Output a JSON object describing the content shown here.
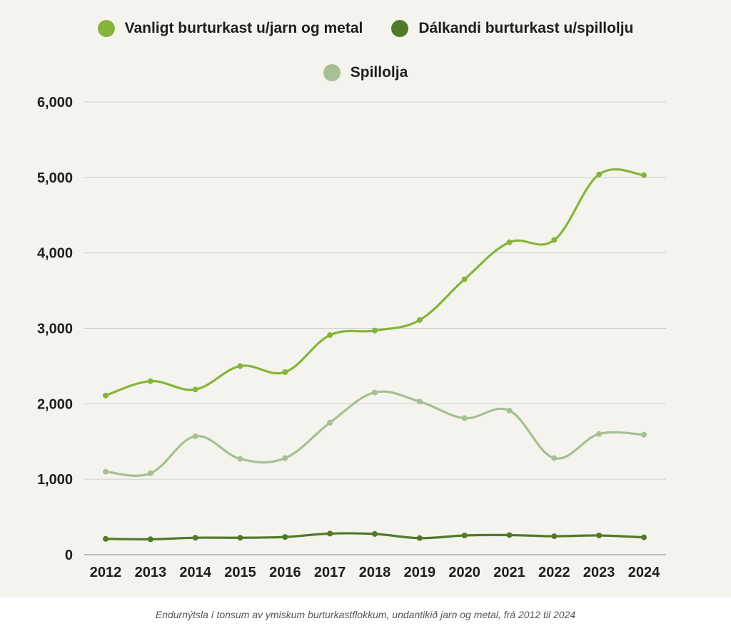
{
  "chart_data": {
    "type": "line",
    "title": "",
    "xlabel": "",
    "ylabel": "",
    "ylim": [
      0,
      6000
    ],
    "yticks": [
      0,
      1000,
      2000,
      3000,
      4000,
      5000,
      6000
    ],
    "ytick_labels": [
      "0",
      "1,000",
      "2,000",
      "3,000",
      "4,000",
      "5,000",
      "6,000"
    ],
    "grid": true,
    "legend_position": "top-center",
    "categories": [
      "2012",
      "2013",
      "2014",
      "2015",
      "2016",
      "2017",
      "2018",
      "2019",
      "2020",
      "2021",
      "2022",
      "2023",
      "2024"
    ],
    "series": [
      {
        "name": "Vanligt burturkast u/jarn og metal",
        "color": "#86b43a",
        "values": [
          2110,
          2300,
          2190,
          2500,
          2420,
          2910,
          2970,
          3110,
          3650,
          4140,
          4170,
          5040,
          5030
        ]
      },
      {
        "name": "Dálkandi burturkast u/spillolju",
        "color": "#4f7a28",
        "values": [
          210,
          205,
          225,
          225,
          235,
          280,
          275,
          220,
          255,
          260,
          245,
          255,
          230
        ]
      },
      {
        "name": "Spillolja",
        "color": "#a6bf93",
        "values": [
          1100,
          1080,
          1570,
          1270,
          1280,
          1750,
          2150,
          2030,
          1810,
          1910,
          1280,
          1600,
          1590
        ]
      }
    ]
  },
  "caption": "Endurnýtsla í tonsum av ymiskum burturkastflokkum, undantikið jarn og metal, frá 2012 til 2024"
}
